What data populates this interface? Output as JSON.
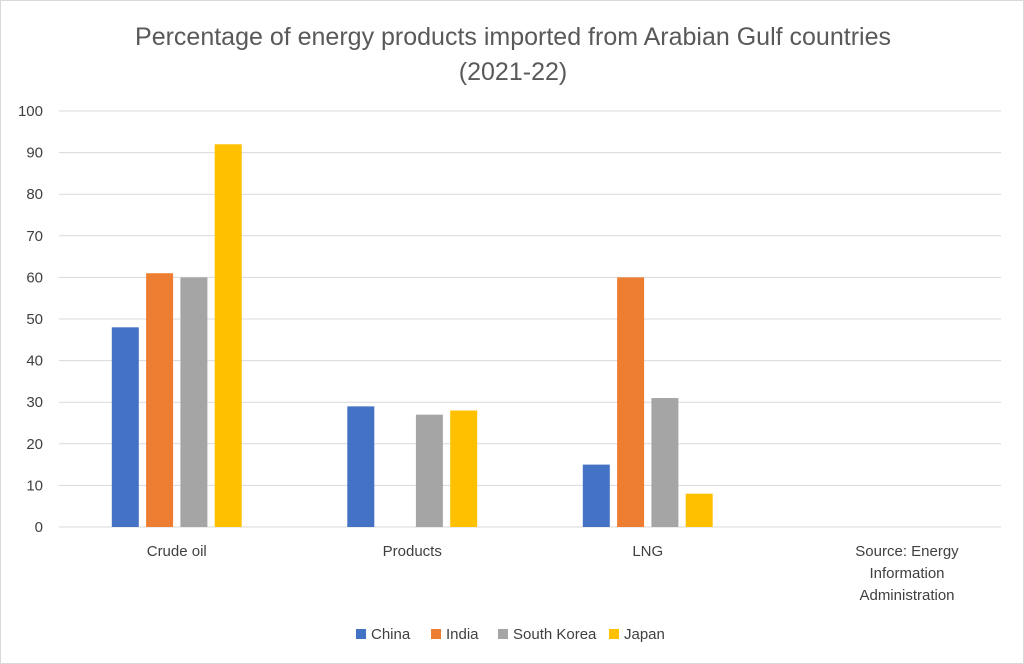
{
  "chart_data": {
    "type": "bar",
    "title_lines": [
      "Percentage of energy products imported from Arabian Gulf countries",
      "(2021-22)"
    ],
    "categories": [
      "Crude oil",
      "Products",
      "LNG",
      ""
    ],
    "series": [
      {
        "name": "China",
        "values": [
          48,
          29,
          15,
          null
        ]
      },
      {
        "name": "India",
        "values": [
          61,
          0,
          60,
          null
        ]
      },
      {
        "name": "South Korea",
        "values": [
          60,
          27,
          31,
          null
        ]
      },
      {
        "name": "Japan",
        "values": [
          92,
          28,
          8,
          null
        ]
      }
    ],
    "colors": [
      "#4472c4",
      "#ed7d31",
      "#a5a5a5",
      "#ffc000"
    ],
    "ylim": [
      0,
      100
    ],
    "yticks": [
      0,
      10,
      20,
      30,
      40,
      50,
      60,
      70,
      80,
      90,
      100
    ],
    "grid": true,
    "legend_position": "bottom",
    "source_lines": [
      "Source: Energy",
      "Information",
      "Administration"
    ]
  }
}
